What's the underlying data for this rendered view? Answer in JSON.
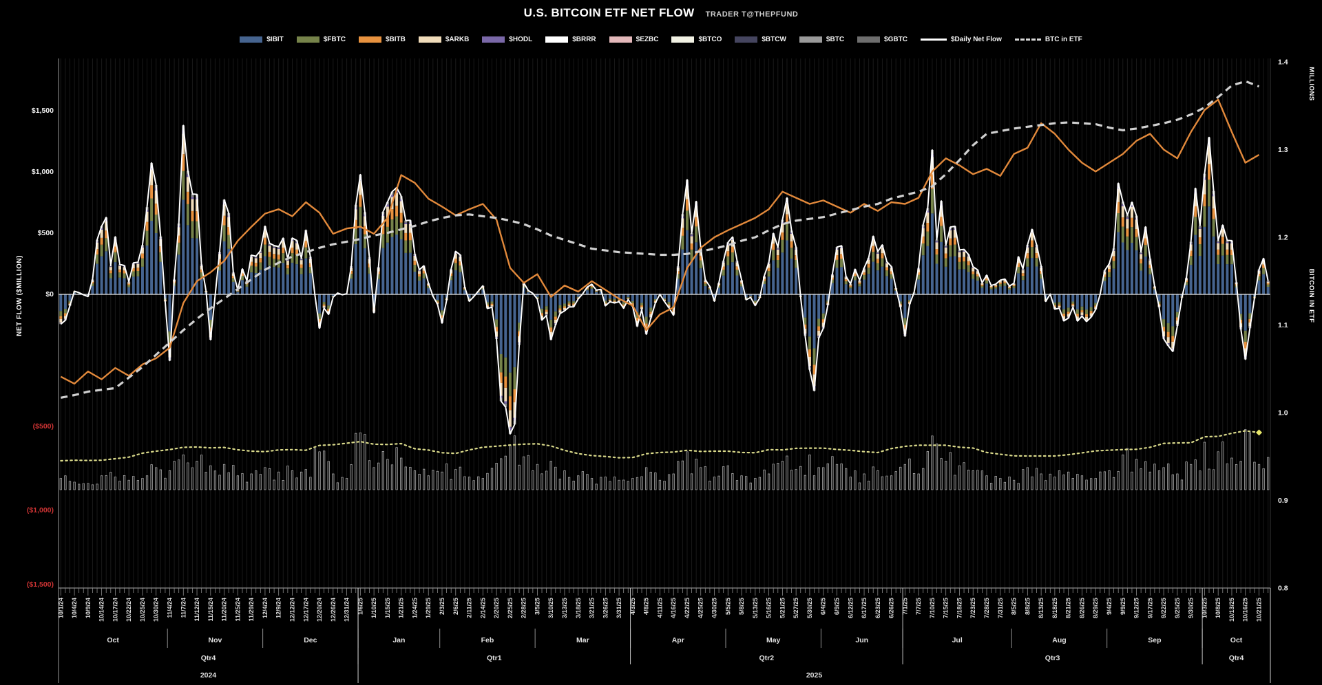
{
  "header": {
    "title": "U.S. BITCOIN ETF NET FLOW",
    "byline": "TRADER T@THEPFUND"
  },
  "legend": {
    "items": [
      {
        "label": "$IBIT",
        "type": "bar",
        "color": "#46648f"
      },
      {
        "label": "$FBTC",
        "type": "bar",
        "color": "#76834a"
      },
      {
        "label": "$BITB",
        "type": "bar",
        "color": "#e8923f"
      },
      {
        "label": "$ARKB",
        "type": "bar",
        "color": "#f0dcba"
      },
      {
        "label": "$HODL",
        "type": "bar",
        "color": "#7a68a8"
      },
      {
        "label": "$BRRR",
        "type": "bar",
        "color": "#ffffff"
      },
      {
        "label": "$EZBC",
        "type": "bar",
        "color": "#e3b8ba"
      },
      {
        "label": "$BTCO",
        "type": "bar",
        "color": "#f2f2e4"
      },
      {
        "label": "$BTCW",
        "type": "bar",
        "color": "#45455f"
      },
      {
        "label": "$BTC",
        "type": "bar",
        "color": "#9a9a9a"
      },
      {
        "label": "$GBTC",
        "type": "bar",
        "color": "#6e6e6e"
      },
      {
        "label": "$Daily Net Flow",
        "type": "line",
        "color": "#ffffff"
      },
      {
        "label": "BTC in ETF",
        "type": "dash",
        "color": "#d8d8d8"
      }
    ]
  },
  "axes": {
    "left": {
      "title": "NET FLOW ($MILLION)",
      "ticks": [
        {
          "label": "$1,500",
          "value": 1500,
          "color": "#f0f0f0"
        },
        {
          "label": "$1,000",
          "value": 1000,
          "color": "#f0f0f0"
        },
        {
          "label": "$500",
          "value": 500,
          "color": "#f0f0f0"
        },
        {
          "label": "$0",
          "value": 0,
          "color": "#f0f0f0"
        },
        {
          "label": "($500)",
          "value": -500,
          "color": "#cc3333"
        },
        {
          "label": "($1,000)",
          "value": -1000,
          "color": "#cc3333"
        },
        {
          "label": "($1,500)",
          "value": -1500,
          "color": "#cc3333"
        }
      ]
    },
    "right": {
      "unit_title": "MILLIONS",
      "title": "BITCOIN IN ETF",
      "ticks": [
        "1.4",
        "1.3",
        "1.2",
        "1.1",
        "1.0",
        "0.9",
        "0.8"
      ],
      "tick_values": [
        1.4,
        1.3,
        1.2,
        1.1,
        1.0,
        0.9,
        0.8
      ]
    }
  },
  "x_axis": {
    "months": [
      {
        "label": "Oct",
        "count": 8
      },
      {
        "label": "Nov",
        "count": 7
      },
      {
        "label": "Dec",
        "count": 7
      },
      {
        "label": "Jan",
        "count": 6
      },
      {
        "label": "Feb",
        "count": 7
      },
      {
        "label": "Mar",
        "count": 7
      },
      {
        "label": "Apr",
        "count": 7
      },
      {
        "label": "May",
        "count": 7
      },
      {
        "label": "Jun",
        "count": 6
      },
      {
        "label": "Jul",
        "count": 8
      },
      {
        "label": "Aug",
        "count": 7
      },
      {
        "label": "Sep",
        "count": 7
      },
      {
        "label": "Oct",
        "count": 5
      }
    ],
    "quarters": [
      {
        "label": "Qtr4",
        "count": 22
      },
      {
        "label": "Qtr1",
        "count": 20
      },
      {
        "label": "Qtr2",
        "count": 20
      },
      {
        "label": "Qtr3",
        "count": 22
      },
      {
        "label": "Qtr4",
        "count": 5
      }
    ],
    "years": [
      {
        "label": "2024",
        "count": 22
      },
      {
        "label": "2025",
        "count": 67
      }
    ]
  },
  "chart_data": {
    "type": "combo (stacked daily bars + lines + mini volume histogram)",
    "title": "U.S. BITCOIN ETF NET FLOW",
    "left_axis_label": "NET FLOW ($MILLION)",
    "right_axis_label": "BITCOIN IN ETF (MILLIONS)",
    "left_axis_range": [
      -1500,
      1500
    ],
    "right_axis_range": [
      0.8,
      1.4
    ],
    "grid": "per-trading-day vertical lines on black background",
    "legend_position": "top center",
    "categories": [
      "10/1/24",
      "10/4/24",
      "10/9/24",
      "10/14/24",
      "10/17/24",
      "10/22/24",
      "10/25/24",
      "10/30/24",
      "11/4/24",
      "11/7/24",
      "11/12/24",
      "11/15/24",
      "11/20/24",
      "11/25/24",
      "11/29/24",
      "12/4/24",
      "12/9/24",
      "12/12/24",
      "12/17/24",
      "12/20/24",
      "12/26/24",
      "12/31/24",
      "1/6/25",
      "1/10/25",
      "1/15/25",
      "1/21/25",
      "1/24/25",
      "1/29/25",
      "2/3/25",
      "2/6/25",
      "2/11/25",
      "2/14/25",
      "2/20/25",
      "2/25/25",
      "2/28/25",
      "3/5/25",
      "3/10/25",
      "3/13/25",
      "3/18/25",
      "3/21/25",
      "3/26/25",
      "3/31/25",
      "4/3/25",
      "4/8/25",
      "4/11/25",
      "4/16/25",
      "4/22/25",
      "4/25/25",
      "4/30/25",
      "5/5/25",
      "5/8/25",
      "5/13/25",
      "5/16/25",
      "5/21/25",
      "5/27/25",
      "5/30/25",
      "6/4/25",
      "6/9/25",
      "6/12/25",
      "6/17/25",
      "6/23/25",
      "6/26/25",
      "7/1/25",
      "7/7/25",
      "7/10/25",
      "7/15/25",
      "7/18/25",
      "7/23/25",
      "7/28/25",
      "7/31/25",
      "8/5/25",
      "8/8/25",
      "8/13/25",
      "8/18/25",
      "8/21/25",
      "8/26/25",
      "8/29/25",
      "9/4/25",
      "9/9/25",
      "9/12/25",
      "9/17/25",
      "9/22/25",
      "9/25/25",
      "9/30/25",
      "10/3/25",
      "10/8/25",
      "10/13/25",
      "10/16/25",
      "10/21/25"
    ],
    "bar_stack_components": [
      {
        "name": "$IBIT",
        "color": "#46648f",
        "fraction": 0.56
      },
      {
        "name": "$FBTC",
        "color": "#76834a",
        "fraction": 0.17
      },
      {
        "name": "$BITB",
        "color": "#e8923f",
        "fraction": 0.1
      },
      {
        "name": "$ARKB",
        "color": "#f0dcba",
        "fraction": 0.12
      },
      {
        "name": "$HODL",
        "color": "#7a68a8",
        "fraction": 0.02
      },
      {
        "name": "$GBTC",
        "color": "#8a8a8a",
        "fraction": 0.03
      }
    ],
    "series": [
      {
        "name": "$Daily Net Flow",
        "type": "bars+white line",
        "axis": "left ($M, est.)",
        "values": [
          -243,
          26,
          -18,
          556,
          470,
          104,
          402,
          893,
          -541,
          1380,
          817,
          -371,
          773,
          36,
          320,
          557,
          390,
          460,
          525,
          -277,
          -23,
          5,
          978,
          -150,
          755,
          802,
          331,
          92,
          -235,
          351,
          -57,
          70,
          -365,
          -1140,
          94,
          -38,
          -370,
          -135,
          -37,
          83,
          -93,
          -60,
          -100,
          -326,
          1,
          -170,
          936,
          380,
          -56,
          425,
          117,
          -91,
          260,
          609,
          385,
          -616,
          -278,
          386,
          86,
          216,
          350,
          227,
          -342,
          217,
          1180,
          403,
          363,
          226,
          157,
          116,
          91,
          404,
          230,
          -121,
          -194,
          -178,
          -126,
          250,
          757,
          642,
          292,
          -363,
          -258,
          430,
          985,
          441,
          439,
          -531,
          203
        ]
      },
      {
        "name": "BTC in ETF",
        "type": "dashed line",
        "axis": "right (millions BTC, est.)",
        "values": [
          1.017,
          1.02,
          1.024,
          1.026,
          1.028,
          1.04,
          1.052,
          1.066,
          1.08,
          1.094,
          1.107,
          1.119,
          1.13,
          1.141,
          1.152,
          1.163,
          1.171,
          1.178,
          1.183,
          1.188,
          1.192,
          1.195,
          1.198,
          1.202,
          1.205,
          1.209,
          1.213,
          1.218,
          1.222,
          1.225,
          1.226,
          1.224,
          1.222,
          1.219,
          1.215,
          1.209,
          1.202,
          1.197,
          1.192,
          1.187,
          1.185,
          1.183,
          1.182,
          1.181,
          1.18,
          1.18,
          1.181,
          1.184,
          1.187,
          1.191,
          1.196,
          1.2,
          1.208,
          1.215,
          1.219,
          1.221,
          1.223,
          1.227,
          1.231,
          1.235,
          1.238,
          1.244,
          1.248,
          1.252,
          1.258,
          1.272,
          1.288,
          1.305,
          1.318,
          1.321,
          1.324,
          1.326,
          1.328,
          1.33,
          1.331,
          1.33,
          1.329,
          1.325,
          1.322,
          1.324,
          1.327,
          1.33,
          1.334,
          1.34,
          1.348,
          1.36,
          1.373,
          1.378,
          1.372
        ]
      },
      {
        "name": "unlabeled orange trend line",
        "type": "line",
        "axis": "right overlay (est.)",
        "values": [
          1.041,
          1.033,
          1.047,
          1.038,
          1.051,
          1.042,
          1.055,
          1.062,
          1.074,
          1.125,
          1.15,
          1.16,
          1.173,
          1.196,
          1.212,
          1.227,
          1.232,
          1.224,
          1.24,
          1.228,
          1.204,
          1.21,
          1.212,
          1.204,
          1.222,
          1.271,
          1.262,
          1.244,
          1.235,
          1.225,
          1.232,
          1.238,
          1.22,
          1.165,
          1.148,
          1.158,
          1.132,
          1.145,
          1.138,
          1.15,
          1.14,
          1.13,
          1.122,
          1.094,
          1.112,
          1.12,
          1.165,
          1.188,
          1.2,
          1.208,
          1.215,
          1.222,
          1.232,
          1.252,
          1.245,
          1.238,
          1.242,
          1.235,
          1.228,
          1.238,
          1.23,
          1.24,
          1.238,
          1.245,
          1.275,
          1.29,
          1.282,
          1.272,
          1.278,
          1.27,
          1.295,
          1.302,
          1.33,
          1.318,
          1.3,
          1.285,
          1.275,
          1.285,
          1.295,
          1.31,
          1.318,
          1.3,
          1.29,
          1.32,
          1.345,
          1.357,
          1.32,
          1.285,
          1.294
        ]
      },
      {
        "name": "unlabeled mini volume histogram",
        "type": "bar-mini",
        "axis": "relative 0-100 (est.)",
        "values": [
          18,
          12,
          10,
          22,
          20,
          15,
          18,
          35,
          30,
          55,
          45,
          38,
          40,
          22,
          25,
          35,
          28,
          30,
          32,
          60,
          25,
          18,
          90,
          35,
          48,
          50,
          30,
          22,
          28,
          32,
          20,
          18,
          42,
          70,
          52,
          40,
          45,
          30,
          22,
          18,
          20,
          15,
          18,
          35,
          15,
          25,
          60,
          35,
          20,
          38,
          22,
          18,
          25,
          45,
          32,
          55,
          35,
          40,
          20,
          25,
          30,
          22,
          40,
          25,
          85,
          45,
          38,
          30,
          22,
          18,
          15,
          35,
          25,
          20,
          28,
          22,
          18,
          30,
          55,
          48,
          28,
          35,
          25,
          40,
          75,
          60,
          50,
          95,
          40
        ]
      }
    ],
    "colors": {
      "background": "#000000",
      "net_flow_line": "#ffffff",
      "btc_in_etf_line": "#d0d0d0",
      "orange_line": "#e2893b",
      "volume_dotted_line": "#d9d98a",
      "negative_tick_labels": "#cc3333"
    }
  }
}
